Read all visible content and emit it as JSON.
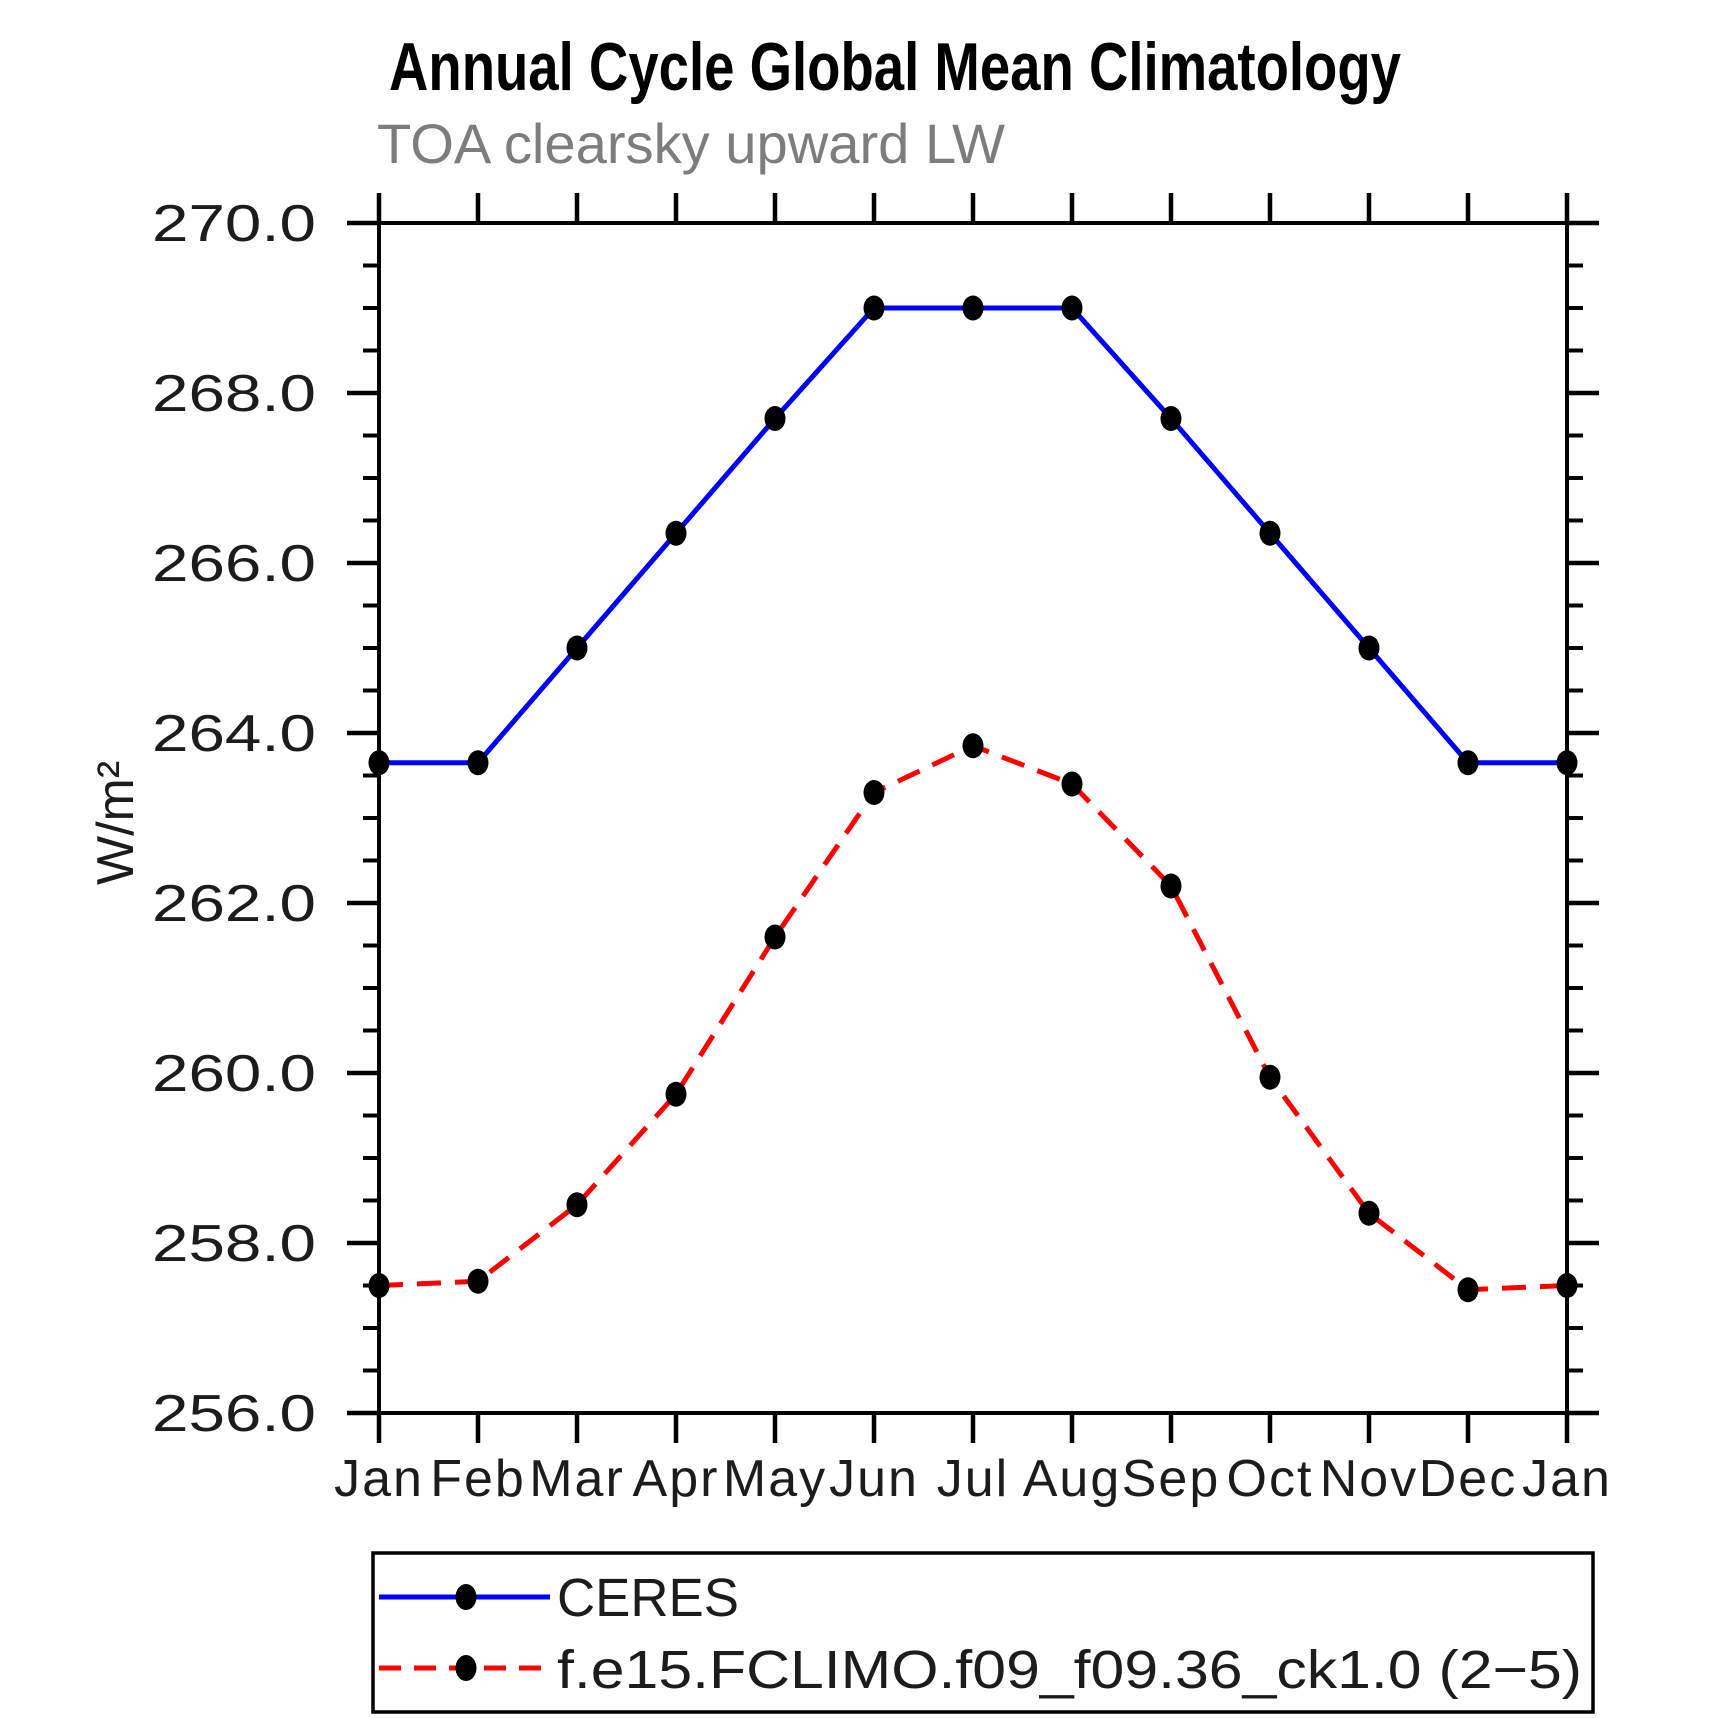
{
  "header": {
    "title": "Annual Cycle Global Mean Climatology",
    "subtitle": "TOA clearsky upward LW"
  },
  "chart_data": {
    "type": "line",
    "title": "Annual Cycle Global Mean Climatology",
    "subtitle": "TOA clearsky upward LW",
    "xlabel": "",
    "ylabel": "W/m²",
    "ylim": [
      256.0,
      270.0
    ],
    "ytick_major_interval": 2.0,
    "ytick_minor_interval": 0.5,
    "ytick_labels": [
      "270.0",
      "268.0",
      "266.0",
      "264.0",
      "262.0",
      "260.0",
      "258.0",
      "256.0"
    ],
    "categories": [
      "Jan",
      "Feb",
      "Mar",
      "Apr",
      "May",
      "Jun",
      "Jul",
      "Aug",
      "Sep",
      "Oct",
      "Nov",
      "Dec",
      "Jan"
    ],
    "grid": false,
    "legend_position": "bottom-left-box",
    "series": [
      {
        "name": "CERES",
        "color": "#0000ff",
        "line_style": "solid",
        "marker": "filled-black-dot",
        "marker_color": "#000000",
        "values": [
          263.65,
          263.65,
          265.0,
          266.35,
          267.7,
          269.0,
          269.0,
          269.0,
          267.7,
          266.35,
          265.0,
          263.65,
          263.65
        ]
      },
      {
        "name": "f.e15.FCLIMO.f09_f09.36_ck1.0 (2−5)",
        "color": "#ff0000",
        "line_style": "dashed",
        "marker": "filled-black-dot",
        "marker_color": "#000000",
        "values": [
          257.5,
          257.55,
          258.45,
          259.75,
          261.6,
          263.3,
          263.85,
          263.4,
          262.2,
          259.95,
          258.35,
          257.45,
          257.5
        ]
      }
    ]
  },
  "legend": {
    "entry1": "CERES",
    "entry2": "f.e15.FCLIMO.f09_f09.36_ck1.0 (2−5)"
  }
}
